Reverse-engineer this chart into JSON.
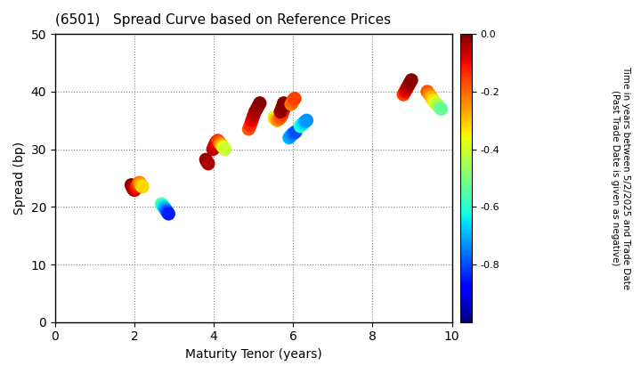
{
  "title": "(6501)   Spread Curve based on Reference Prices",
  "xlabel": "Maturity Tenor (years)",
  "ylabel": "Spread (bp)",
  "colorbar_label": "Time in years between 5/2/2025 and Trade Date\n(Past Trade Date is given as negative)",
  "xlim": [
    0,
    10
  ],
  "ylim": [
    0,
    50
  ],
  "xticks": [
    0,
    2,
    4,
    6,
    8,
    10
  ],
  "yticks": [
    0,
    10,
    20,
    30,
    40,
    50
  ],
  "cmap": "jet",
  "clim": [
    -1.0,
    0.0
  ],
  "cticks": [
    0.0,
    -0.2,
    -0.4,
    -0.6,
    -0.8
  ],
  "point_size": 120,
  "clusters": [
    {
      "maturity": [
        1.92,
        1.94,
        1.96,
        1.98,
        2.0,
        2.02,
        2.04,
        2.06,
        2.08,
        2.1,
        2.12,
        2.14,
        2.16,
        2.18,
        2.2
      ],
      "spread": [
        23.8,
        23.5,
        23.2,
        23.0,
        22.9,
        23.1,
        23.3,
        23.5,
        23.8,
        24.0,
        24.2,
        24.1,
        23.9,
        23.7,
        23.5
      ],
      "time": [
        -0.01,
        -0.02,
        -0.03,
        -0.04,
        -0.05,
        -0.07,
        -0.09,
        -0.11,
        -0.14,
        -0.17,
        -0.2,
        -0.23,
        -0.26,
        -0.29,
        -0.32
      ]
    },
    {
      "maturity": [
        2.68,
        2.71,
        2.74,
        2.77,
        2.8,
        2.83,
        2.86
      ],
      "spread": [
        20.5,
        20.2,
        20.0,
        19.7,
        19.4,
        19.1,
        18.8
      ],
      "time": [
        -0.55,
        -0.6,
        -0.65,
        -0.7,
        -0.75,
        -0.8,
        -0.85
      ]
    },
    {
      "maturity": [
        3.8,
        3.83,
        3.86
      ],
      "spread": [
        28.2,
        27.8,
        27.5
      ],
      "time": [
        -0.02,
        -0.03,
        -0.04
      ]
    },
    {
      "maturity": [
        3.98,
        4.01,
        4.04,
        4.07,
        4.1,
        4.13,
        4.16,
        4.19,
        4.22,
        4.25,
        4.28
      ],
      "spread": [
        30.0,
        30.5,
        31.0,
        31.3,
        31.5,
        31.3,
        31.0,
        30.8,
        30.5,
        30.3,
        30.0
      ],
      "time": [
        -0.05,
        -0.06,
        -0.08,
        -0.1,
        -0.13,
        -0.17,
        -0.21,
        -0.26,
        -0.31,
        -0.36,
        -0.41
      ]
    },
    {
      "maturity": [
        4.88,
        4.92,
        4.96,
        5.0,
        5.04,
        5.08,
        5.12,
        5.16
      ],
      "spread": [
        33.5,
        34.2,
        35.0,
        35.8,
        36.5,
        37.0,
        37.5,
        38.0
      ],
      "time": [
        -0.18,
        -0.13,
        -0.09,
        -0.06,
        -0.04,
        -0.03,
        -0.02,
        -0.01
      ]
    },
    {
      "maturity": [
        5.52,
        5.56,
        5.6,
        5.64,
        5.68,
        5.72,
        5.76,
        5.8
      ],
      "spread": [
        35.5,
        35.2,
        35.0,
        35.2,
        35.5,
        36.0,
        36.8,
        37.5
      ],
      "time": [
        -0.35,
        -0.3,
        -0.26,
        -0.22,
        -0.18,
        -0.15,
        -0.11,
        -0.08
      ]
    },
    {
      "maturity": [
        5.68,
        5.72,
        5.76
      ],
      "spread": [
        36.5,
        37.2,
        38.0
      ],
      "time": [
        -0.02,
        -0.01,
        -0.005
      ]
    },
    {
      "maturity": [
        5.9,
        5.94,
        5.98,
        6.02,
        6.06
      ],
      "spread": [
        32.0,
        32.3,
        32.6,
        32.8,
        33.0
      ],
      "time": [
        -0.7,
        -0.72,
        -0.74,
        -0.77,
        -0.8
      ]
    },
    {
      "maturity": [
        5.95,
        5.98,
        6.01,
        6.04
      ],
      "spread": [
        37.8,
        38.2,
        38.6,
        38.8
      ],
      "time": [
        -0.22,
        -0.2,
        -0.18,
        -0.16
      ]
    },
    {
      "maturity": [
        6.18,
        6.22,
        6.26,
        6.3,
        6.34
      ],
      "spread": [
        34.0,
        34.3,
        34.5,
        34.8,
        35.0
      ],
      "time": [
        -0.6,
        -0.63,
        -0.66,
        -0.7,
        -0.73
      ]
    },
    {
      "maturity": [
        8.78,
        8.82,
        8.86,
        8.9,
        8.94,
        8.98
      ],
      "spread": [
        39.5,
        40.0,
        40.5,
        41.0,
        41.5,
        42.0
      ],
      "time": [
        -0.15,
        -0.1,
        -0.07,
        -0.04,
        -0.02,
        -0.01
      ]
    },
    {
      "maturity": [
        9.38,
        9.43,
        9.48,
        9.53,
        9.58,
        9.63,
        9.68,
        9.73
      ],
      "spread": [
        40.0,
        39.5,
        39.0,
        38.5,
        38.0,
        37.8,
        37.3,
        37.0
      ],
      "time": [
        -0.18,
        -0.23,
        -0.28,
        -0.33,
        -0.38,
        -0.43,
        -0.48,
        -0.53
      ]
    }
  ]
}
